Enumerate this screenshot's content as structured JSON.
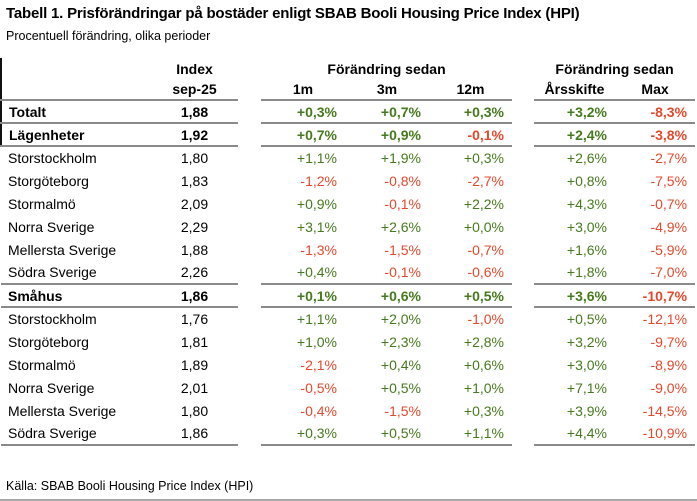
{
  "accent_colors": {
    "positive_green": "#457a1d",
    "negative_red": "#e3492c",
    "grid_line_gray": "#8a8a8a",
    "accent_bar_black": "#111111"
  },
  "chart_data": {
    "type": "table",
    "title": "Tabell 1. Prisförändringar på bostäder enligt SBAB Booli Housing Price Index (HPI)",
    "subtitle": "Procentuell förändring, olika perioder",
    "source": "Källa: SBAB Booli Housing Price Index (HPI)",
    "header": {
      "index_group_line1": "Index",
      "index_group_line2": "sep-25",
      "change_group_1": "Förändring sedan",
      "change_group_2": "Förändring sedan",
      "sub_columns": [
        "1m",
        "3m",
        "12m",
        "Årsskifte",
        "Max"
      ]
    },
    "rows": [
      {
        "label": "Totalt",
        "bold": true,
        "accent": true,
        "values": [
          "1,88",
          "+0,3%",
          "+0,7%",
          "+0,3%",
          "+3,2%",
          "-8,3%"
        ]
      },
      {
        "label": "Lägenheter",
        "bold": true,
        "accent": true,
        "values": [
          "1,92",
          "+0,7%",
          "+0,9%",
          "-0,1%",
          "+2,4%",
          "-3,8%"
        ]
      },
      {
        "label": "Storstockholm",
        "bold": false,
        "accent": false,
        "values": [
          "1,80",
          "+1,1%",
          "+1,9%",
          "+0,3%",
          "+2,6%",
          "-2,7%"
        ]
      },
      {
        "label": "Storgöteborg",
        "bold": false,
        "accent": false,
        "values": [
          "1,83",
          "-1,2%",
          "-0,8%",
          "-2,7%",
          "+0,8%",
          "-7,5%"
        ]
      },
      {
        "label": "Stormalmö",
        "bold": false,
        "accent": false,
        "values": [
          "2,09",
          "+0,9%",
          "-0,1%",
          "+2,2%",
          "+4,3%",
          "-0,7%"
        ]
      },
      {
        "label": "Norra Sverige",
        "bold": false,
        "accent": false,
        "values": [
          "2,29",
          "+3,1%",
          "+2,6%",
          "+0,0%",
          "+3,0%",
          "-4,9%"
        ]
      },
      {
        "label": "Mellersta Sverige",
        "bold": false,
        "accent": false,
        "values": [
          "1,88",
          "-1,3%",
          "-1,5%",
          "-0,7%",
          "+1,6%",
          "-5,9%"
        ]
      },
      {
        "label": "Södra Sverige",
        "bold": false,
        "accent": false,
        "values": [
          "2,26",
          "+0,4%",
          "-0,1%",
          "-0,6%",
          "+1,8%",
          "-7,0%"
        ]
      },
      {
        "label": "Småhus",
        "bold": true,
        "accent": false,
        "values": [
          "1,86",
          "+0,1%",
          "+0,6%",
          "+0,5%",
          "+3,6%",
          "-10,7%"
        ]
      },
      {
        "label": "Storstockholm",
        "bold": false,
        "accent": false,
        "values": [
          "1,76",
          "+1,1%",
          "+2,0%",
          "-1,0%",
          "+0,5%",
          "-12,1%"
        ]
      },
      {
        "label": "Storgöteborg",
        "bold": false,
        "accent": false,
        "values": [
          "1,81",
          "+1,0%",
          "+2,3%",
          "+2,8%",
          "+3,2%",
          "-9,7%"
        ]
      },
      {
        "label": "Stormalmö",
        "bold": false,
        "accent": false,
        "values": [
          "1,89",
          "-2,1%",
          "+0,4%",
          "+0,6%",
          "+3,0%",
          "-8,9%"
        ]
      },
      {
        "label": "Norra Sverige",
        "bold": false,
        "accent": false,
        "values": [
          "2,01",
          "-0,5%",
          "+0,5%",
          "+1,0%",
          "+7,1%",
          "-9,0%"
        ]
      },
      {
        "label": "Mellersta Sverige",
        "bold": false,
        "accent": false,
        "values": [
          "1,80",
          "-0,4%",
          "-1,5%",
          "+0,3%",
          "+3,9%",
          "-14,5%"
        ]
      },
      {
        "label": "Södra Sverige",
        "bold": false,
        "accent": false,
        "values": [
          "1,86",
          "+0,3%",
          "+0,5%",
          "+1,1%",
          "+4,4%",
          "-10,9%"
        ]
      }
    ]
  }
}
